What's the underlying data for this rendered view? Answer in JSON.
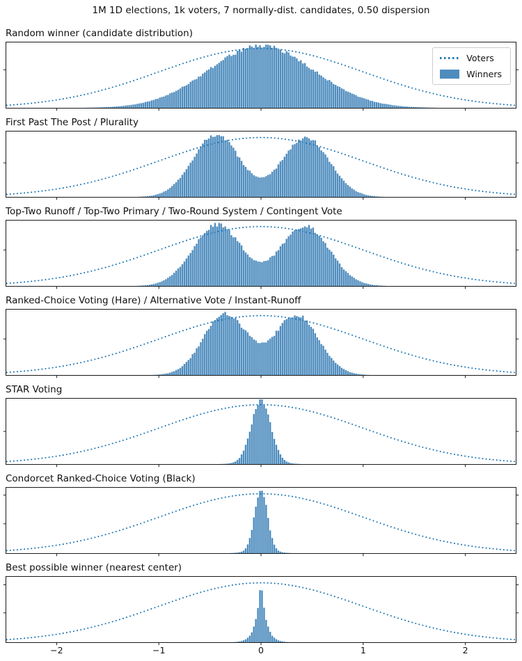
{
  "figure": {
    "title": "1M 1D elections, 1k voters, 7 normally-dist. candidates, 0.50 dispersion",
    "background": "#ffffff"
  },
  "colors": {
    "winners_fill": "#4e8cbe",
    "winners_edge": "rgba(255,255,255,0.35)",
    "voters_line": "#1f77b4",
    "spine": "#1a1a1a",
    "tick_label": "#111111"
  },
  "legend": {
    "voters_label": "Voters",
    "winners_label": "Winners",
    "position": "upper-right-of-first-panel"
  },
  "chart_data": {
    "type": "histogram",
    "x_range": [
      -2.5,
      2.5
    ],
    "x_ticks": [
      -2,
      -1,
      0,
      1,
      2
    ],
    "x_tick_labels": [
      "−2",
      "−1",
      "0",
      "1",
      "2"
    ],
    "bin_width": 0.02,
    "grid": false,
    "series_names": [
      "Voters",
      "Winners"
    ],
    "voters_curve": {
      "dist": "normal",
      "mean": 0,
      "sigma": 1.0,
      "peak_rel_height": 0.93,
      "line_style": "dotted"
    },
    "panels": [
      {
        "title": "Random winner (candidate distribution)",
        "winners": {
          "shape": "unimodal-normal",
          "peaks_x": [
            0
          ],
          "peak_rel_height": 0.97,
          "valley_rel_height": null,
          "components": [
            {
              "kind": "gauss",
              "mu": 0,
              "sigma": 0.52,
              "amp": 0.97
            }
          ]
        },
        "y_ticks_rel_from_top": [
          0.42
        ]
      },
      {
        "title": "First Past The Post / Plurality",
        "winners": {
          "shape": "bimodal",
          "peaks_x": [
            -0.44,
            0.44
          ],
          "peak_rel_height": 0.97,
          "valley_rel_height": 0.3,
          "components": [
            {
              "kind": "gauss",
              "mu": -0.44,
              "sigma": 0.23,
              "amp": 0.97
            },
            {
              "kind": "gauss",
              "mu": 0.44,
              "sigma": 0.23,
              "amp": 0.93
            }
          ]
        },
        "y_ticks_rel_from_top": [
          0.48
        ]
      },
      {
        "title": "Top-Two Runoff / Top-Two Primary / Two-Round System / Contingent Vote",
        "winners": {
          "shape": "bimodal",
          "peaks_x": [
            -0.43,
            0.43
          ],
          "peak_rel_height": 0.96,
          "valley_rel_height": 0.38,
          "components": [
            {
              "kind": "gauss",
              "mu": -0.43,
              "sigma": 0.24,
              "amp": 0.96
            },
            {
              "kind": "gauss",
              "mu": 0.43,
              "sigma": 0.24,
              "amp": 0.94
            }
          ]
        },
        "y_ticks_rel_from_top": [
          0.45
        ]
      },
      {
        "title": "Ranked-Choice Voting (Hare) / Alternative Vote / Instant-Runoff",
        "winners": {
          "shape": "bimodal",
          "peaks_x": [
            -0.35,
            0.35
          ],
          "peak_rel_height": 0.96,
          "valley_rel_height": 0.52,
          "components": [
            {
              "kind": "gauss",
              "mu": -0.35,
              "sigma": 0.215,
              "amp": 0.96
            },
            {
              "kind": "gauss",
              "mu": 0.35,
              "sigma": 0.215,
              "amp": 0.94
            }
          ]
        },
        "y_ticks_rel_from_top": [
          0.45
        ]
      },
      {
        "title": "STAR Voting",
        "winners": {
          "shape": "unimodal-narrow",
          "peaks_x": [
            0
          ],
          "peak_rel_height": 0.97,
          "valley_rel_height": null,
          "components": [
            {
              "kind": "gauss",
              "mu": 0,
              "sigma": 0.095,
              "amp": 0.95
            },
            {
              "kind": "gauss",
              "mu": 0,
              "sigma": 0.18,
              "amp": 0.04
            }
          ]
        },
        "y_ticks_rel_from_top": [
          0.5
        ]
      },
      {
        "title": "Condorcet Ranked-Choice Voting (Black)",
        "winners": {
          "shape": "unimodal-narrow",
          "peaks_x": [
            0
          ],
          "peak_rel_height": 0.97,
          "valley_rel_height": null,
          "components": [
            {
              "kind": "gauss",
              "mu": 0,
              "sigma": 0.062,
              "amp": 0.95
            },
            {
              "kind": "gauss",
              "mu": 0,
              "sigma": 0.13,
              "amp": 0.05
            }
          ]
        },
        "y_ticks_rel_from_top": [
          0.12,
          0.55
        ]
      },
      {
        "title": "Best possible winner (nearest center)",
        "winners": {
          "shape": "sharp-cusp",
          "peaks_x": [
            0
          ],
          "peak_rel_height": 0.97,
          "valley_rel_height": null,
          "components": [
            {
              "kind": "laplace",
              "mu": 0,
              "b": 0.05,
              "amp": 0.97
            }
          ]
        },
        "y_ticks_rel_from_top": [
          0.13,
          0.55
        ]
      }
    ]
  }
}
